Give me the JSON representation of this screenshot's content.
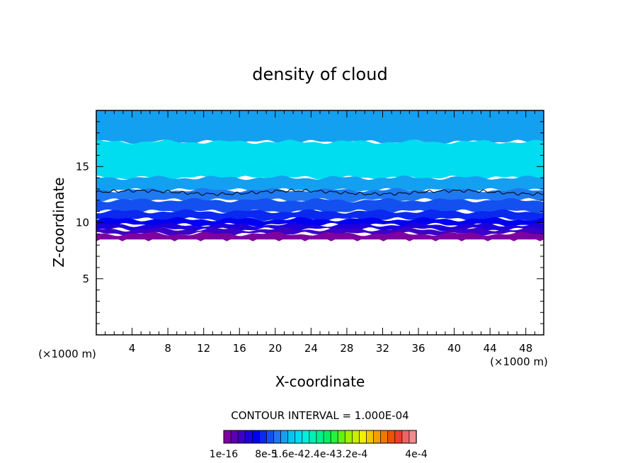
{
  "chart_data": {
    "type": "heatmap",
    "title": "density of cloud",
    "xlabel": "X-coordinate",
    "ylabel": "Z-coordinate",
    "x_unit_left": "(×1000 m)",
    "x_unit_right": "(×1000 m)",
    "xlim": [
      0,
      50
    ],
    "ylim": [
      0,
      20
    ],
    "x_ticks": [
      4,
      8,
      12,
      16,
      20,
      24,
      28,
      32,
      36,
      40,
      44,
      48
    ],
    "y_ticks": [
      5,
      10,
      15
    ],
    "contour_interval_text": "CONTOUR INTERVAL = 1.000E-04",
    "colorbar": {
      "colors": [
        "#7f00a0",
        "#5a00b4",
        "#3c00c8",
        "#1e00dc",
        "#0000f0",
        "#0a28f0",
        "#1450f0",
        "#1e78f0",
        "#14a0f0",
        "#00c8f0",
        "#00dcf0",
        "#00f0dc",
        "#00f0b4",
        "#00f08c",
        "#00f064",
        "#28f03c",
        "#64f014",
        "#a0f000",
        "#c8f000",
        "#f0f000",
        "#f0c800",
        "#f0a000",
        "#f07800",
        "#f05000",
        "#f03c28",
        "#f06464",
        "#f08c8c"
      ],
      "labels": [
        "1e-16",
        "8e-5",
        "1.6e-4",
        "2.4e-4",
        "3.2e-4",
        "4e-4"
      ],
      "label_texts": [
        "1e-16",
        "8e-5",
        "1.6e-42.4e-43.2e-4",
        "4e-4"
      ]
    },
    "layers": [
      {
        "z_bottom": 17.2,
        "z_top": 20.0,
        "color": "#14a0f0"
      },
      {
        "z_bottom": 14.0,
        "z_top": 17.2,
        "color": "#00dcf0"
      },
      {
        "z_bottom": 12.9,
        "z_top": 14.0,
        "color": "#14a0f0"
      },
      {
        "z_bottom": 12.0,
        "z_top": 12.9,
        "color": "#1e78f0"
      },
      {
        "z_bottom": 11.0,
        "z_top": 12.0,
        "color": "#1450f0"
      },
      {
        "z_bottom": 10.3,
        "z_top": 11.0,
        "color": "#0a28f0"
      },
      {
        "z_bottom": 9.8,
        "z_top": 10.3,
        "color": "#0000f0"
      },
      {
        "z_bottom": 9.4,
        "z_top": 9.8,
        "color": "#1e00dc"
      },
      {
        "z_bottom": 9.0,
        "z_top": 9.4,
        "color": "#3c00c8"
      },
      {
        "z_bottom": 8.5,
        "z_top": 9.0,
        "color": "#7f00a0"
      }
    ],
    "contour_line_z": 12.7
  }
}
